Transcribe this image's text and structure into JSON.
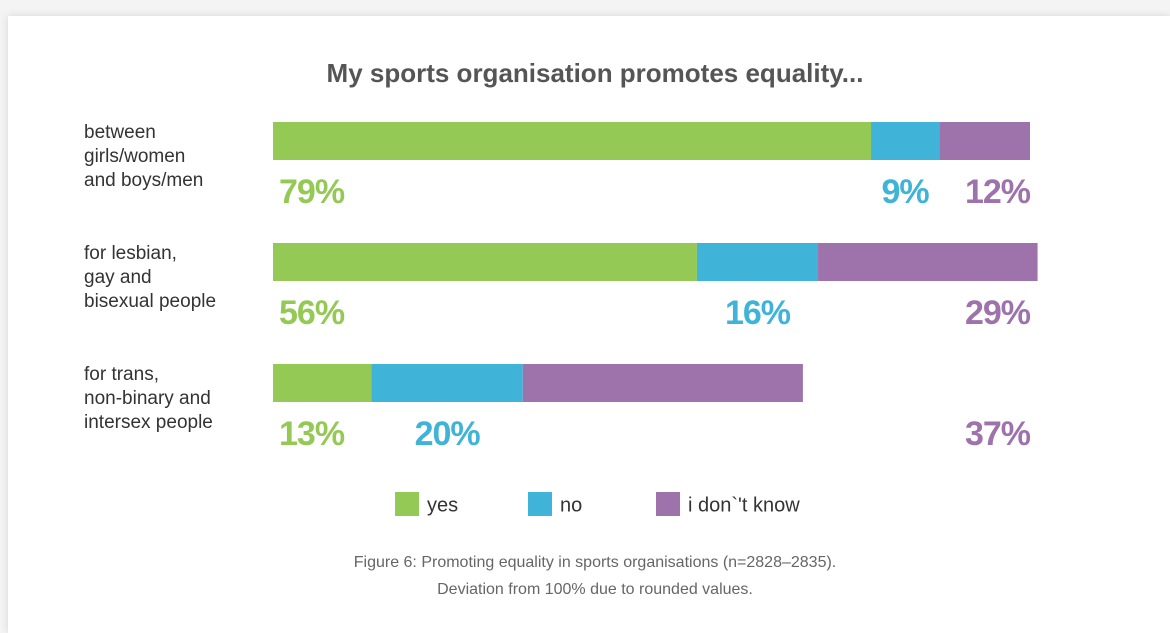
{
  "chart_data": {
    "type": "stacked-bar-horizontal",
    "title": "My sports organisation promotes equality...",
    "categories": [
      "between\ngirls/women\nand boys/men",
      "for lesbian,\ngay and\nbisexual people",
      "for trans,\nnon-binary and\nintersex people"
    ],
    "series": [
      {
        "name": "yes",
        "color": "#94c955",
        "values": [
          79,
          56,
          13
        ],
        "value_labels": [
          "79%",
          "56%",
          "13%"
        ]
      },
      {
        "name": "no",
        "color": "#3fb3d8",
        "values": [
          9,
          16,
          20
        ],
        "value_labels": [
          "9%",
          "16%",
          "20%"
        ]
      },
      {
        "name": "i don`'t know",
        "color": "#9e72ab",
        "values": [
          12,
          29,
          37
        ],
        "value_labels": [
          "12%",
          "29%",
          "37%"
        ]
      }
    ],
    "xlim": [
      0,
      100
    ],
    "caption": [
      "Figure 6: Promoting equality in sports organisations (n=2828–2835).",
      "Deviation from 100% due to rounded values."
    ]
  }
}
